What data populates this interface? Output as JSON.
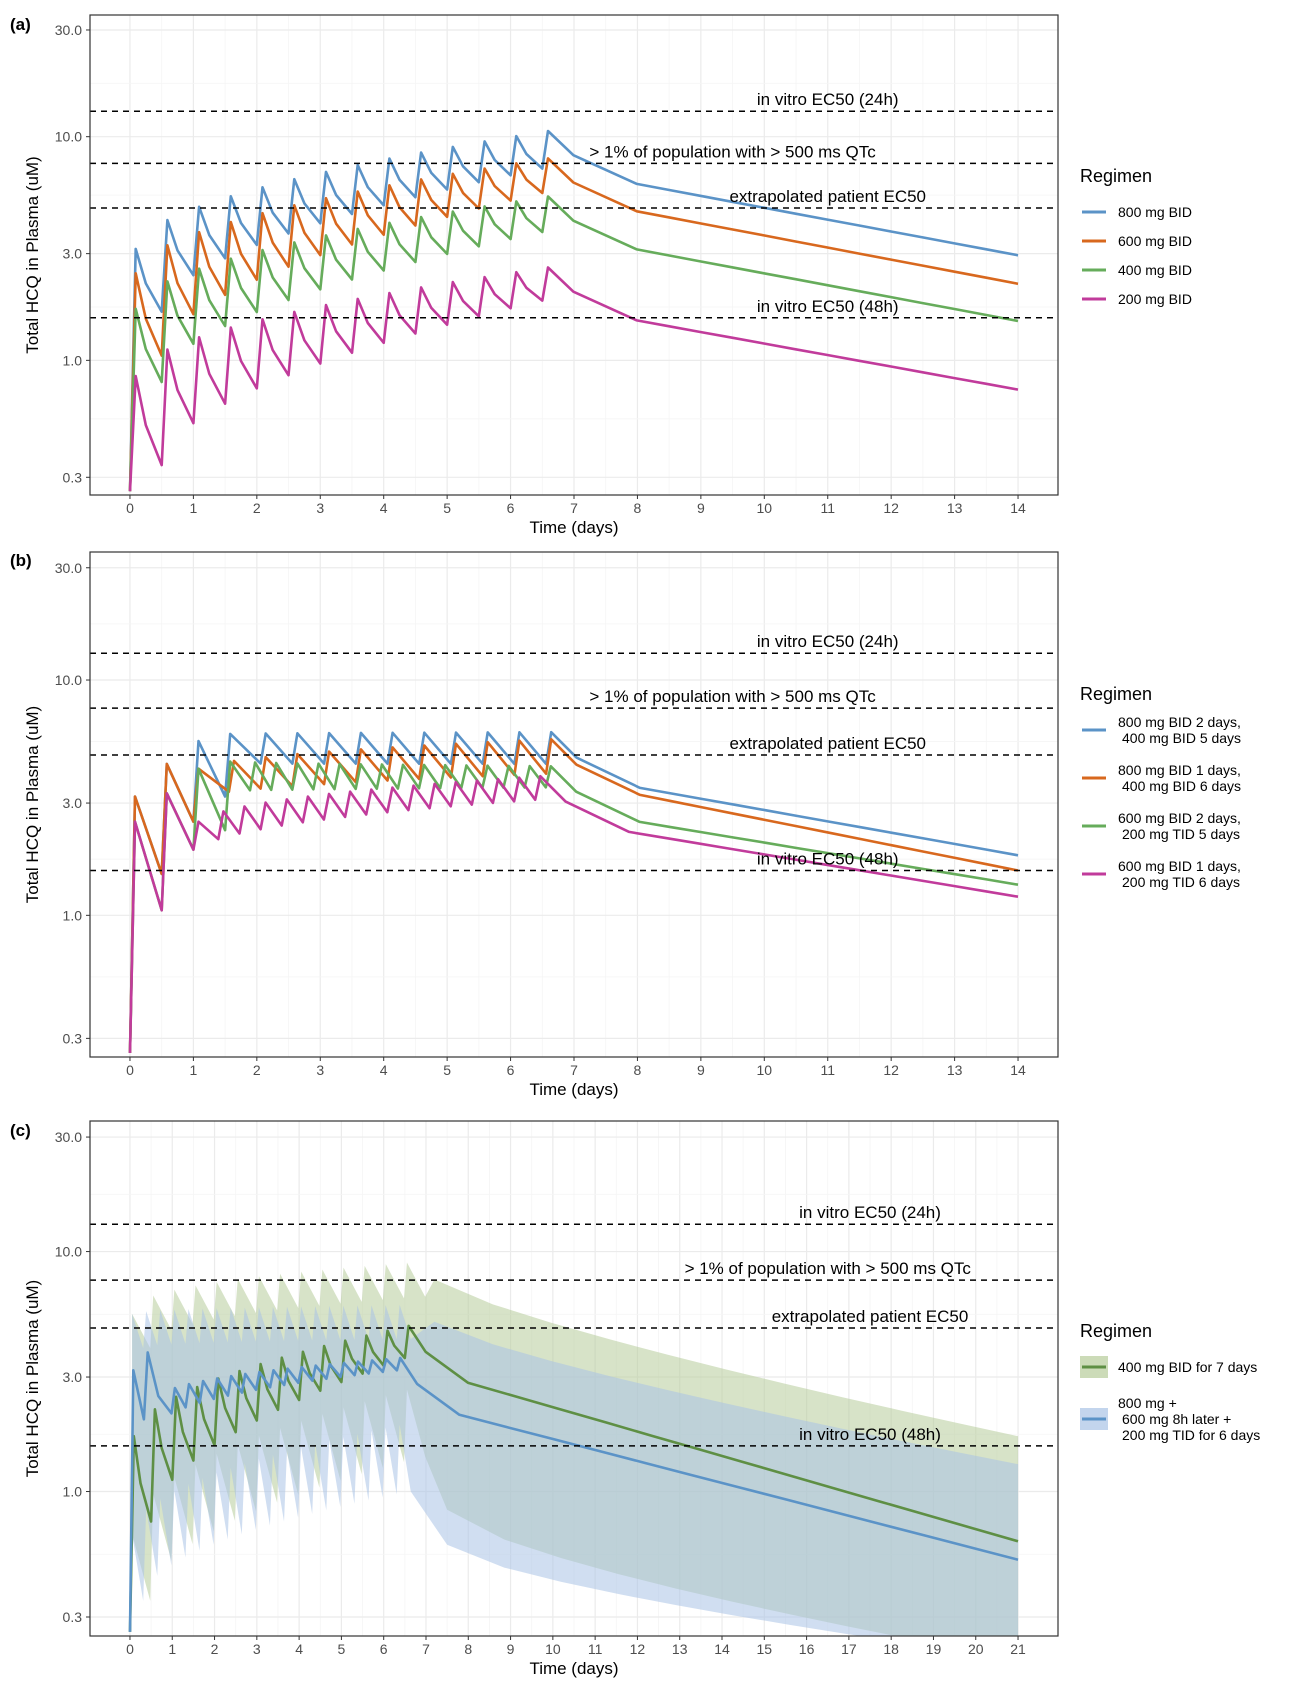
{
  "chart_data": [
    {
      "type": "line",
      "panel_label": "(a)",
      "xlabel": "Time (days)",
      "ylabel": "Total HCQ in Plasma (uM)",
      "xlim": [
        0,
        14
      ],
      "ylim": [
        0.25,
        35
      ],
      "y_scale": "log10",
      "x_ticks": [
        0,
        1,
        2,
        3,
        4,
        5,
        6,
        7,
        8,
        9,
        10,
        11,
        12,
        13,
        14
      ],
      "y_ticks": [
        0.3,
        1.0,
        3.0,
        10.0,
        30.0
      ],
      "y_tick_labels": [
        "0.3",
        "1.0",
        "3.0",
        "10.0",
        "30.0"
      ],
      "grid": true,
      "legend_title": "Regimen",
      "legend_position": "right",
      "reference_lines": [
        {
          "y": 13.0,
          "label": "in vitro EC50 (24h)",
          "label_x": 11.0
        },
        {
          "y": 7.6,
          "label": "> 1% of population with > 500 ms QTc",
          "label_x": 9.5
        },
        {
          "y": 4.8,
          "label": "extrapolated patient EC50",
          "label_x": 11.0
        },
        {
          "y": 1.55,
          "label": "in vitro EC50 (48h)",
          "label_x": 11.0
        }
      ],
      "series": [
        {
          "name": "800 mg BID",
          "color": "#5b93c7",
          "dose_interval": 0.5,
          "n_doses": 14,
          "first_peak": 3.15,
          "first_trough": 1.65,
          "last_peak": 10.6,
          "last_trough": 7.2,
          "end_value": 2.95
        },
        {
          "name": "600 mg BID",
          "color": "#d8681e",
          "dose_interval": 0.5,
          "n_doses": 14,
          "first_peak": 2.45,
          "first_trough": 1.05,
          "last_peak": 8.0,
          "last_trough": 5.6,
          "end_value": 2.2
        },
        {
          "name": "400 mg BID",
          "color": "#66ac5b",
          "dose_interval": 0.5,
          "n_doses": 14,
          "first_peak": 1.7,
          "first_trough": 0.8,
          "last_peak": 5.4,
          "last_trough": 3.75,
          "end_value": 1.5
        },
        {
          "name": "200 mg BID",
          "color": "#c13b9b",
          "dose_interval": 0.5,
          "n_doses": 14,
          "first_peak": 0.85,
          "first_trough": 0.34,
          "last_peak": 2.6,
          "last_trough": 1.85,
          "end_value": 0.74
        }
      ]
    },
    {
      "type": "line",
      "panel_label": "(b)",
      "xlabel": "Time (days)",
      "ylabel": "Total HCQ in Plasma (uM)",
      "xlim": [
        0,
        14
      ],
      "ylim": [
        0.25,
        35
      ],
      "y_scale": "log10",
      "x_ticks": [
        0,
        1,
        2,
        3,
        4,
        5,
        6,
        7,
        8,
        9,
        10,
        11,
        12,
        13,
        14
      ],
      "y_ticks": [
        0.3,
        1.0,
        3.0,
        10.0,
        30.0
      ],
      "y_tick_labels": [
        "0.3",
        "1.0",
        "3.0",
        "10.0",
        "30.0"
      ],
      "grid": true,
      "legend_title": "Regimen",
      "legend_position": "right",
      "reference_lines": [
        {
          "y": 13.0,
          "label": "in vitro EC50 (24h)",
          "label_x": 11.0
        },
        {
          "y": 7.6,
          "label": "> 1% of population with > 500 ms QTc",
          "label_x": 9.5
        },
        {
          "y": 4.8,
          "label": "extrapolated patient EC50",
          "label_x": 11.0
        },
        {
          "y": 1.55,
          "label": "in vitro EC50 (48h)",
          "label_x": 11.0
        }
      ],
      "series": [
        {
          "name": "800 mg BID 2 days,\n400 mg BID 5 days",
          "color": "#5b93c7",
          "loading_points": [
            [
              0.08,
              3.2
            ],
            [
              0.5,
              1.5
            ],
            [
              0.58,
              4.4
            ],
            [
              1.0,
              2.5
            ],
            [
              1.08,
              5.5
            ],
            [
              1.5,
              3.2
            ],
            [
              1.58,
              5.9
            ]
          ],
          "maint_interval": 0.5,
          "last_peak": 6.0,
          "last_trough": 4.4,
          "end_value": 1.8
        },
        {
          "name": "800 mg BID 1 days,\n400 mg BID 6 days",
          "color": "#d8681e",
          "loading_points": [
            [
              0.08,
              3.2
            ],
            [
              0.5,
              1.5
            ],
            [
              0.58,
              4.4
            ],
            [
              1.0,
              2.5
            ],
            [
              1.08,
              4.2
            ]
          ],
          "maint_interval": 0.5,
          "last_peak": 5.6,
          "last_trough": 4.0,
          "end_value": 1.55
        },
        {
          "name": "600 mg BID 2 days,\n200 mg TID 5 days",
          "color": "#66ac5b",
          "loading_points": [
            [
              0.08,
              2.5
            ],
            [
              0.5,
              1.05
            ],
            [
              0.58,
              3.3
            ],
            [
              1.0,
              1.9
            ],
            [
              1.08,
              4.2
            ],
            [
              1.5,
              2.3
            ],
            [
              1.58,
              4.5
            ]
          ],
          "maint_interval": 0.333,
          "last_peak": 4.3,
          "last_trough": 3.5,
          "end_value": 1.35
        },
        {
          "name": "600 mg BID 1 days,\n200 mg TID 6 days",
          "color": "#c13b9b",
          "loading_points": [
            [
              0.08,
              2.5
            ],
            [
              0.5,
              1.05
            ],
            [
              0.58,
              3.3
            ],
            [
              1.0,
              1.9
            ],
            [
              1.08,
              2.5
            ]
          ],
          "maint_interval": 0.333,
          "last_peak": 3.9,
          "last_trough": 3.1,
          "end_value": 1.2
        }
      ]
    },
    {
      "type": "area",
      "panel_label": "(c)",
      "xlabel": "Time (days)",
      "ylabel": "Total HCQ in Plasma (uM)",
      "xlim": [
        0,
        21
      ],
      "ylim": [
        0.25,
        35
      ],
      "y_scale": "log10",
      "x_ticks": [
        0,
        1,
        2,
        3,
        4,
        5,
        6,
        7,
        8,
        9,
        10,
        11,
        12,
        13,
        14,
        15,
        16,
        17,
        18,
        19,
        20,
        21
      ],
      "y_ticks": [
        0.3,
        1.0,
        3.0,
        10.0,
        30.0
      ],
      "y_tick_labels": [
        "0.3",
        "1.0",
        "3.0",
        "10.0",
        "30.0"
      ],
      "grid": true,
      "legend_title": "Regimen",
      "legend_position": "right",
      "reference_lines": [
        {
          "y": 13.0,
          "label": "in vitro EC50 (24h)",
          "label_x": 17.5
        },
        {
          "y": 7.6,
          "label": "> 1% of population with > 500 ms QTc",
          "label_x": 16.5
        },
        {
          "y": 4.8,
          "label": "extrapolated patient EC50",
          "label_x": 17.5
        },
        {
          "y": 1.55,
          "label": "in vitro EC50 (48h)",
          "label_x": 17.5
        }
      ],
      "series": [
        {
          "name": "400 mg BID for 7 days",
          "color": "#5e8f44",
          "band_color": "#b7cc9a",
          "dose_interval": 0.5,
          "first_peak": 1.7,
          "first_trough": 0.75,
          "last_peak": 4.9,
          "last_trough": 3.6,
          "end_value": 0.62,
          "band_upper_peak": 9.0,
          "band_upper_end": 1.7,
          "band_lower_last": 1.4,
          "band_lower_end": 0.2
        },
        {
          "name": "800 mg +\n600 mg 8h later +\n200 mg TID for 6 days",
          "color": "#5b93c7",
          "band_color": "#a9c3e6",
          "loading_points": [
            [
              0.08,
              3.2
            ],
            [
              0.33,
              2.0
            ],
            [
              0.42,
              3.8
            ],
            [
              0.67,
              2.5
            ]
          ],
          "maint_interval": 0.333,
          "last_peak": 3.6,
          "last_trough": 3.2,
          "end_value": 0.52,
          "band_upper_peak": 6.0,
          "band_upper_end": 1.3,
          "band_lower_last": 1.0,
          "band_lower_end": 0.2
        }
      ]
    }
  ]
}
